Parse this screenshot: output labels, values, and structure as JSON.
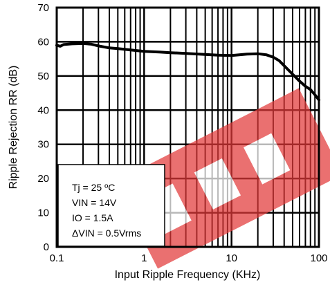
{
  "chart_data": {
    "type": "line",
    "xlabel": "Input Ripple Frequency (KHz)",
    "ylabel": "Ripple Rejection RR (dB)",
    "xscale": "log",
    "xlim": [
      0.1,
      100
    ],
    "ylim": [
      0,
      70
    ],
    "grid": true,
    "x_ticks": [
      0.1,
      1,
      10,
      100
    ],
    "x_tick_labels": [
      "0.1",
      "1",
      "10",
      "100"
    ],
    "y_ticks": [
      0,
      10,
      20,
      30,
      40,
      50,
      60,
      70
    ],
    "y_tick_labels": [
      "0",
      "10",
      "20",
      "30",
      "40",
      "50",
      "60",
      "70"
    ],
    "conditions": [
      "Tj = 25 ºC",
      "VIN = 14V",
      "IO = 1.5A",
      "ΔVIN = 0.5Vrms"
    ],
    "series": [
      {
        "x": [
          0.1,
          0.11,
          0.12,
          0.15,
          0.2,
          0.25,
          0.3,
          0.4,
          0.5,
          0.7,
          1,
          1.5,
          2,
          3,
          5,
          7,
          10,
          15,
          20,
          25,
          30,
          35,
          40,
          50,
          60,
          70,
          80,
          90,
          100
        ],
        "y": [
          59,
          58.7,
          59.2,
          59.4,
          59.5,
          59.3,
          58.8,
          58.2,
          58,
          57.6,
          57.2,
          57,
          56.8,
          56.6,
          56.3,
          56.1,
          56,
          56.4,
          56.5,
          56.2,
          55.5,
          54.5,
          53,
          50.5,
          48.5,
          47,
          46,
          44.5,
          43
        ]
      }
    ]
  }
}
